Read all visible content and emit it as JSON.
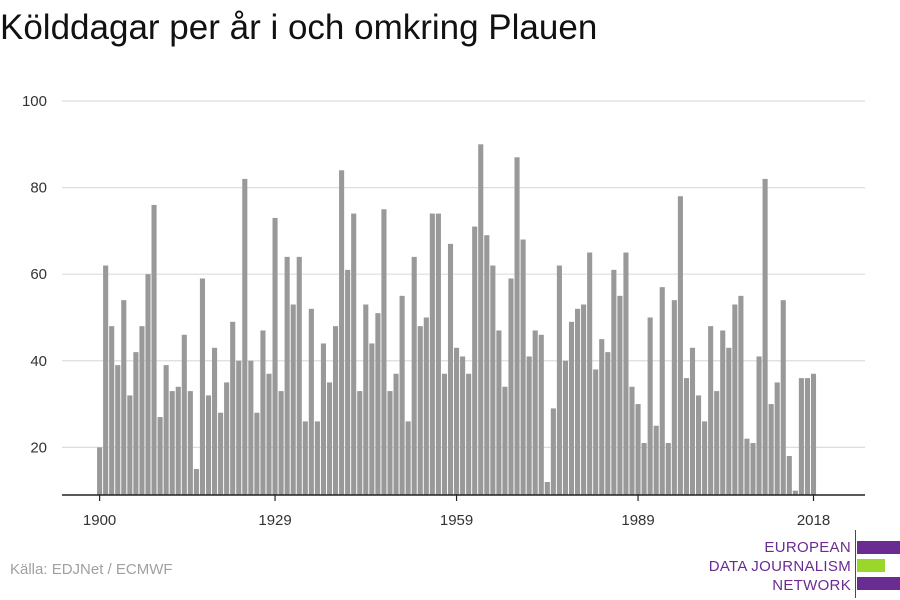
{
  "title": "Kölddagar per år i och omkring Plauen",
  "source": "Källa: EDJNet / ECMWF",
  "logo": {
    "lines": [
      "EUROPEAN",
      "DATA JOURNALISM",
      "NETWORK"
    ],
    "colors": [
      "#6a2c91",
      "#9bd72b",
      "#6a2c91"
    ]
  },
  "chart_data": {
    "type": "bar",
    "title": "Kölddagar per år i och omkring Plauen",
    "xlabel": "",
    "ylabel": "",
    "x_start": 1900,
    "x_end": 2021,
    "x_ticks": [
      1900,
      1929,
      1959,
      1989,
      2018
    ],
    "y_ticks": [
      20,
      40,
      60,
      80,
      100
    ],
    "ylim": [
      9,
      100
    ],
    "grid": true,
    "bar_color": "#999999",
    "values": [
      20,
      62,
      48,
      39,
      54,
      32,
      42,
      48,
      60,
      76,
      27,
      39,
      33,
      34,
      46,
      33,
      15,
      59,
      32,
      43,
      28,
      35,
      49,
      40,
      82,
      40,
      28,
      47,
      37,
      73,
      33,
      64,
      53,
      64,
      26,
      52,
      26,
      44,
      35,
      48,
      84,
      61,
      74,
      33,
      53,
      44,
      51,
      75,
      33,
      37,
      55,
      26,
      64,
      48,
      50,
      74,
      74,
      37,
      67,
      43,
      41,
      37,
      71,
      90,
      69,
      62,
      47,
      34,
      59,
      87,
      68,
      41,
      47,
      46,
      12,
      29,
      62,
      40,
      49,
      52,
      53,
      65,
      38,
      45,
      42,
      61,
      55,
      65,
      34,
      30,
      21,
      50,
      25,
      57,
      21,
      54,
      78,
      36,
      43,
      32,
      26,
      48,
      33,
      47,
      43,
      53,
      55,
      22,
      21,
      41,
      82,
      30,
      35,
      54,
      18,
      10,
      36,
      36,
      37
    ]
  }
}
